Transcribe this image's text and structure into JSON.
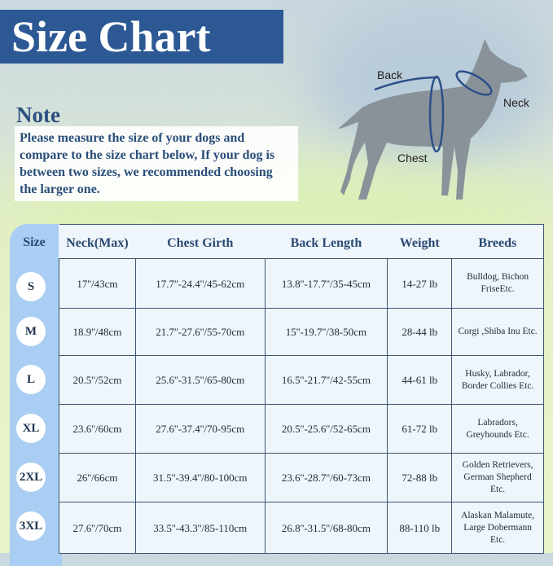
{
  "title": "Size Chart",
  "note": {
    "heading": "Note",
    "text": "Please measure the size of your dogs and compare to the size chart below, If your dog is between two sizes, we recommended choosing the larger one."
  },
  "diagram": {
    "back": "Back",
    "neck": "Neck",
    "chest": "Chest",
    "silhouette_color": "#8a9299",
    "measure_color": "#2c4f8a"
  },
  "table": {
    "headers": [
      "Size",
      "Neck(Max)",
      "Chest Girth",
      "Back Length",
      "Weight",
      "Breeds"
    ],
    "rows": [
      {
        "size": "S",
        "neck": "17''/43cm",
        "chest": "17.7''-24.4''/45-62cm",
        "back": "13.8''-17.7''/35-45cm",
        "weight": "14-27 lb",
        "breeds": "Bulldog, Bichon FriseEtc."
      },
      {
        "size": "M",
        "neck": "18.9''/48cm",
        "chest": "21.7''-27.6''/55-70cm",
        "back": "15''-19.7''/38-50cm",
        "weight": "28-44 lb",
        "breeds": "Corgi ,Shiba Inu Etc."
      },
      {
        "size": "L",
        "neck": "20.5''/52cm",
        "chest": "25.6''-31.5''/65-80cm",
        "back": "16.5''-21.7''/42-55cm",
        "weight": "44-61 lb",
        "breeds": "Husky, Labrador, Border Collies Etc."
      },
      {
        "size": "XL",
        "neck": "23.6''/60cm",
        "chest": "27.6''-37.4''/70-95cm",
        "back": "20.5''-25.6''/52-65cm",
        "weight": "61-72 lb",
        "breeds": "Labradors, Greyhounds Etc."
      },
      {
        "size": "2XL",
        "neck": "26''/66cm",
        "chest": "31.5''-39.4''/80-100cm",
        "back": "23.6''-28.7''/60-73cm",
        "weight": "72-88 lb",
        "breeds": "Golden Retrievers, German Shepherd Etc."
      },
      {
        "size": "3XL",
        "neck": "27.6''/70cm",
        "chest": "33.5''-43.3''/85-110cm",
        "back": "26.8''-31.5''/68-80cm",
        "weight": "88-110 lb",
        "breeds": "Alaskan Malamute, Large Dobermann Etc."
      }
    ]
  }
}
